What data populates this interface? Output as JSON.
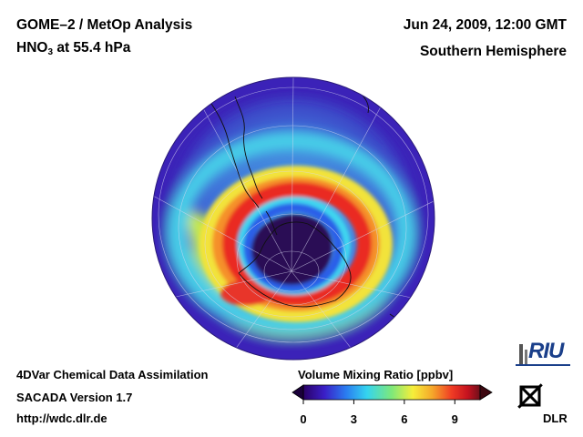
{
  "header": {
    "instrument": "GOME–2 / MetOp Analysis",
    "species_main": "HNO",
    "species_sub": "3",
    "level": " at 55.4 hPa",
    "datetime": "Jun 24, 2009, 12:00 GMT",
    "region": "Southern Hemisphere"
  },
  "footer": {
    "line1": "4DVar Chemical Data Assimilation",
    "line2": "SACADA Version 1.7",
    "line3": "http://wdc.dlr.de"
  },
  "colorbar": {
    "title": "Volume Mixing Ratio [ppbv]",
    "ticks": [
      "0",
      "3",
      "6",
      "9"
    ],
    "tick_values": [
      0,
      3,
      6,
      9
    ],
    "range": [
      0,
      10.5
    ],
    "colors": [
      "#2a0066",
      "#3a1fc7",
      "#2a7bf0",
      "#34d4ef",
      "#7ee87a",
      "#f6ee3a",
      "#f5a72a",
      "#ef3b24",
      "#c5121f",
      "#6e0f1a"
    ]
  },
  "logos": {
    "riu": "RIU",
    "dlr": "DLR"
  },
  "map": {
    "projection": "south-polar orthographic",
    "background": "#3a22b8"
  }
}
